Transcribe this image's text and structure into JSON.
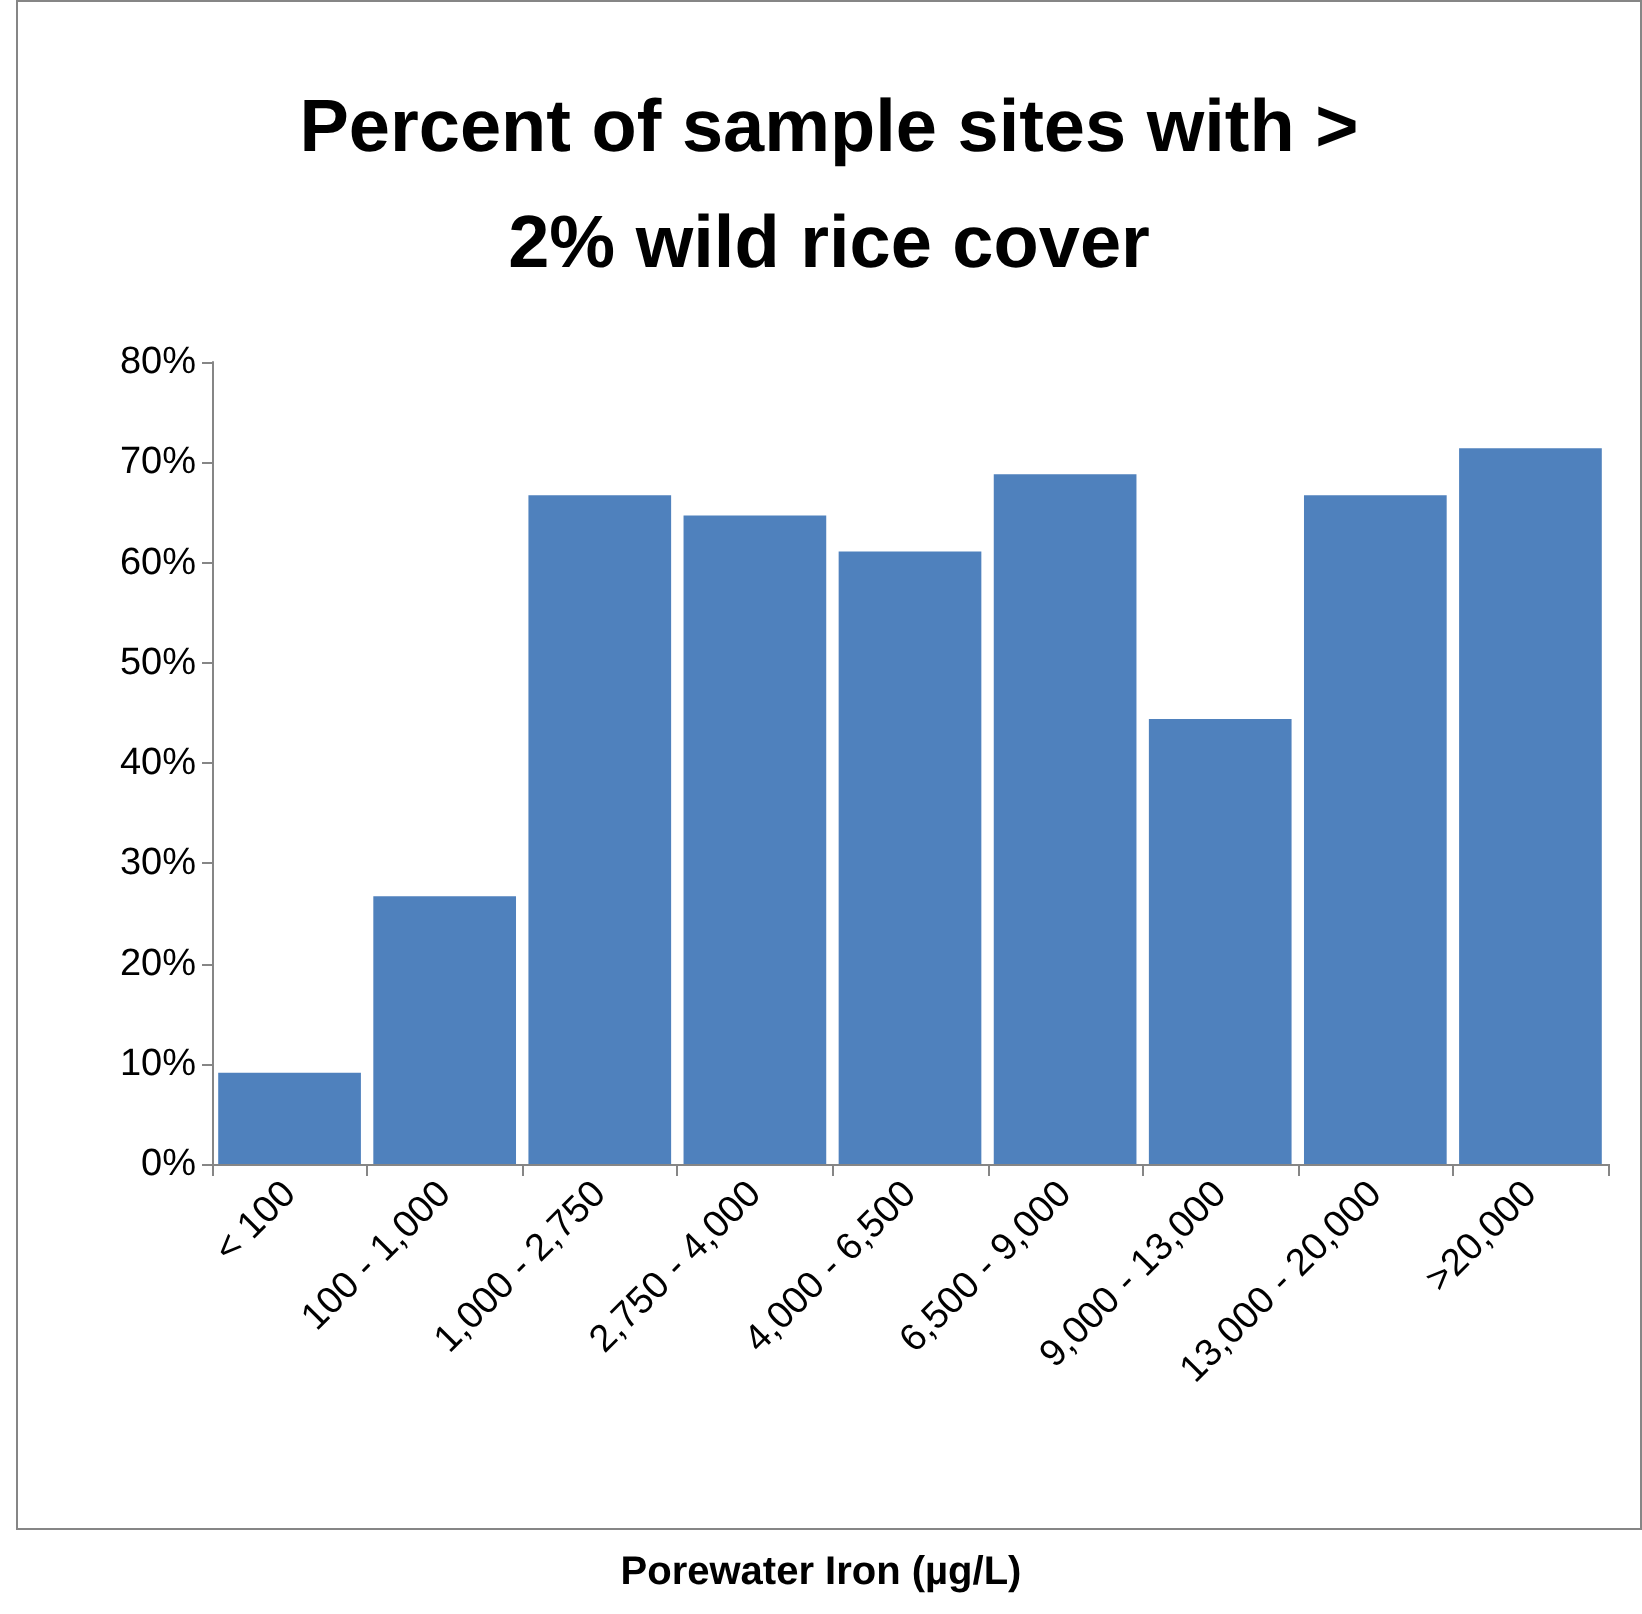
{
  "chart_data": {
    "type": "bar",
    "title": "Percent of sample sites with >\n2% wild rice cover",
    "xlabel": "Porewater Iron (µg/L)",
    "categories": [
      "< 100",
      "100 - 1,000",
      "1,000 - 2,750",
      "2,750 - 4,000",
      "4,000 - 6,500",
      "6,500 - 9,000",
      "9,000 - 13,000",
      "13,000 - 20,000",
      ">20,000"
    ],
    "values": [
      9.1,
      26.7,
      66.7,
      64.7,
      61.1,
      68.8,
      44.4,
      66.7,
      71.4
    ],
    "color": "#4f81bd",
    "ylim": [
      0,
      80
    ],
    "yticks": [
      {
        "value": 0,
        "label": "0%"
      },
      {
        "value": 10,
        "label": "10%"
      },
      {
        "value": 20,
        "label": "20%"
      },
      {
        "value": 30,
        "label": "30%"
      },
      {
        "value": 40,
        "label": "40%"
      },
      {
        "value": 50,
        "label": "50%"
      },
      {
        "value": 60,
        "label": "60%"
      },
      {
        "value": 70,
        "label": "70%"
      },
      {
        "value": 80,
        "label": "80%"
      }
    ],
    "grid": false
  }
}
